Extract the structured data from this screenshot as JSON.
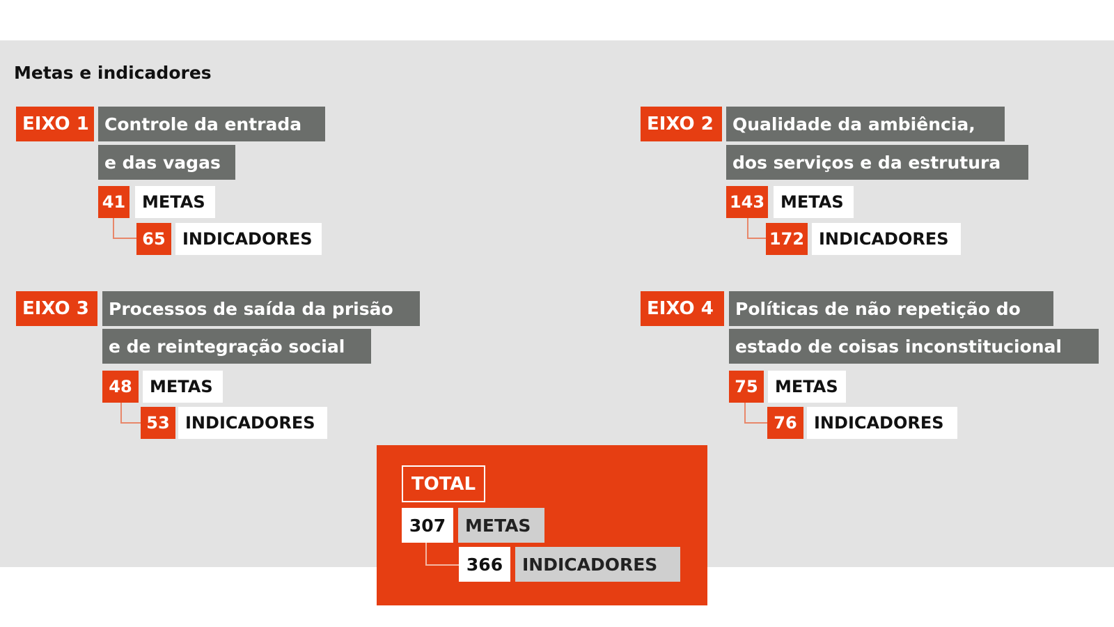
{
  "title": "Metas e indicadores",
  "eixos": [
    {
      "tag": "EIXO 1",
      "title_lines": [
        "Controle da entrada",
        "e das vagas"
      ],
      "metas": {
        "value": "41",
        "label": "METAS"
      },
      "indicadores": {
        "value": "65",
        "label": "INDICADORES"
      }
    },
    {
      "tag": "EIXO 2",
      "title_lines": [
        "Qualidade da ambiência,",
        "dos serviços e da estrutura"
      ],
      "metas": {
        "value": "143",
        "label": "METAS"
      },
      "indicadores": {
        "value": "172",
        "label": "INDICADORES"
      }
    },
    {
      "tag": "EIXO 3",
      "title_lines": [
        "Processos de saída da prisão",
        "e de reintegração social"
      ],
      "metas": {
        "value": "48",
        "label": "METAS"
      },
      "indicadores": {
        "value": "53",
        "label": "INDICADORES"
      }
    },
    {
      "tag": "EIXO 4",
      "title_lines": [
        "Políticas de não repetição do",
        "estado de coisas inconstitucional"
      ],
      "metas": {
        "value": "75",
        "label": "METAS"
      },
      "indicadores": {
        "value": "76",
        "label": "INDICADORES"
      }
    }
  ],
  "total": {
    "label": "TOTAL",
    "metas": {
      "value": "307",
      "label": "METAS"
    },
    "indicadores": {
      "value": "366",
      "label": "INDICADORES"
    }
  },
  "colors": {
    "accent": "#e63e12",
    "header_gray": "#6b6e6b",
    "background": "#e3e3e3"
  }
}
